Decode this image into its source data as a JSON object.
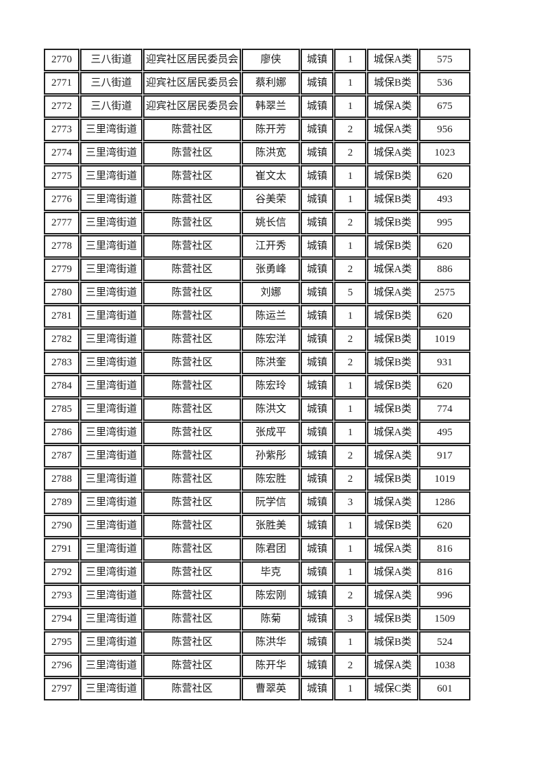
{
  "page": {
    "background_color": "#ffffff",
    "text_color": "#1c1c1c",
    "border_color": "#1f1f1f"
  },
  "table": {
    "rows": [
      [
        "2770",
        "三八街道",
        "迎宾社区居民委员会",
        "廖侠",
        "城镇",
        "1",
        "城保A类",
        "575"
      ],
      [
        "2771",
        "三八街道",
        "迎宾社区居民委员会",
        "蔡利娜",
        "城镇",
        "1",
        "城保B类",
        "536"
      ],
      [
        "2772",
        "三八街道",
        "迎宾社区居民委员会",
        "韩翠兰",
        "城镇",
        "1",
        "城保A类",
        "675"
      ],
      [
        "2773",
        "三里湾街道",
        "陈营社区",
        "陈开芳",
        "城镇",
        "2",
        "城保A类",
        "956"
      ],
      [
        "2774",
        "三里湾街道",
        "陈营社区",
        "陈洪宽",
        "城镇",
        "2",
        "城保A类",
        "1023"
      ],
      [
        "2775",
        "三里湾街道",
        "陈营社区",
        "崔文太",
        "城镇",
        "1",
        "城保B类",
        "620"
      ],
      [
        "2776",
        "三里湾街道",
        "陈营社区",
        "谷美荣",
        "城镇",
        "1",
        "城保B类",
        "493"
      ],
      [
        "2777",
        "三里湾街道",
        "陈营社区",
        "姚长信",
        "城镇",
        "2",
        "城保B类",
        "995"
      ],
      [
        "2778",
        "三里湾街道",
        "陈营社区",
        "江开秀",
        "城镇",
        "1",
        "城保B类",
        "620"
      ],
      [
        "2779",
        "三里湾街道",
        "陈营社区",
        "张勇峰",
        "城镇",
        "2",
        "城保A类",
        "886"
      ],
      [
        "2780",
        "三里湾街道",
        "陈营社区",
        "刘娜",
        "城镇",
        "5",
        "城保A类",
        "2575"
      ],
      [
        "2781",
        "三里湾街道",
        "陈营社区",
        "陈运兰",
        "城镇",
        "1",
        "城保B类",
        "620"
      ],
      [
        "2782",
        "三里湾街道",
        "陈营社区",
        "陈宏洋",
        "城镇",
        "2",
        "城保B类",
        "1019"
      ],
      [
        "2783",
        "三里湾街道",
        "陈营社区",
        "陈洪奎",
        "城镇",
        "2",
        "城保B类",
        "931"
      ],
      [
        "2784",
        "三里湾街道",
        "陈营社区",
        "陈宏玲",
        "城镇",
        "1",
        "城保B类",
        "620"
      ],
      [
        "2785",
        "三里湾街道",
        "陈营社区",
        "陈洪文",
        "城镇",
        "1",
        "城保B类",
        "774"
      ],
      [
        "2786",
        "三里湾街道",
        "陈营社区",
        "张成平",
        "城镇",
        "1",
        "城保A类",
        "495"
      ],
      [
        "2787",
        "三里湾街道",
        "陈营社区",
        "孙紫彤",
        "城镇",
        "2",
        "城保A类",
        "917"
      ],
      [
        "2788",
        "三里湾街道",
        "陈营社区",
        "陈宏胜",
        "城镇",
        "2",
        "城保B类",
        "1019"
      ],
      [
        "2789",
        "三里湾街道",
        "陈营社区",
        "阮学信",
        "城镇",
        "3",
        "城保A类",
        "1286"
      ],
      [
        "2790",
        "三里湾街道",
        "陈营社区",
        "张胜美",
        "城镇",
        "1",
        "城保B类",
        "620"
      ],
      [
        "2791",
        "三里湾街道",
        "陈营社区",
        "陈君团",
        "城镇",
        "1",
        "城保A类",
        "816"
      ],
      [
        "2792",
        "三里湾街道",
        "陈营社区",
        "毕克",
        "城镇",
        "1",
        "城保A类",
        "816"
      ],
      [
        "2793",
        "三里湾街道",
        "陈营社区",
        "陈宏刚",
        "城镇",
        "2",
        "城保A类",
        "996"
      ],
      [
        "2794",
        "三里湾街道",
        "陈营社区",
        "陈菊",
        "城镇",
        "3",
        "城保B类",
        "1509"
      ],
      [
        "2795",
        "三里湾街道",
        "陈营社区",
        "陈洪华",
        "城镇",
        "1",
        "城保B类",
        "524"
      ],
      [
        "2796",
        "三里湾街道",
        "陈营社区",
        "陈开华",
        "城镇",
        "2",
        "城保A类",
        "1038"
      ],
      [
        "2797",
        "三里湾街道",
        "陈营社区",
        "曹翠英",
        "城镇",
        "1",
        "城保C类",
        "601"
      ]
    ]
  }
}
